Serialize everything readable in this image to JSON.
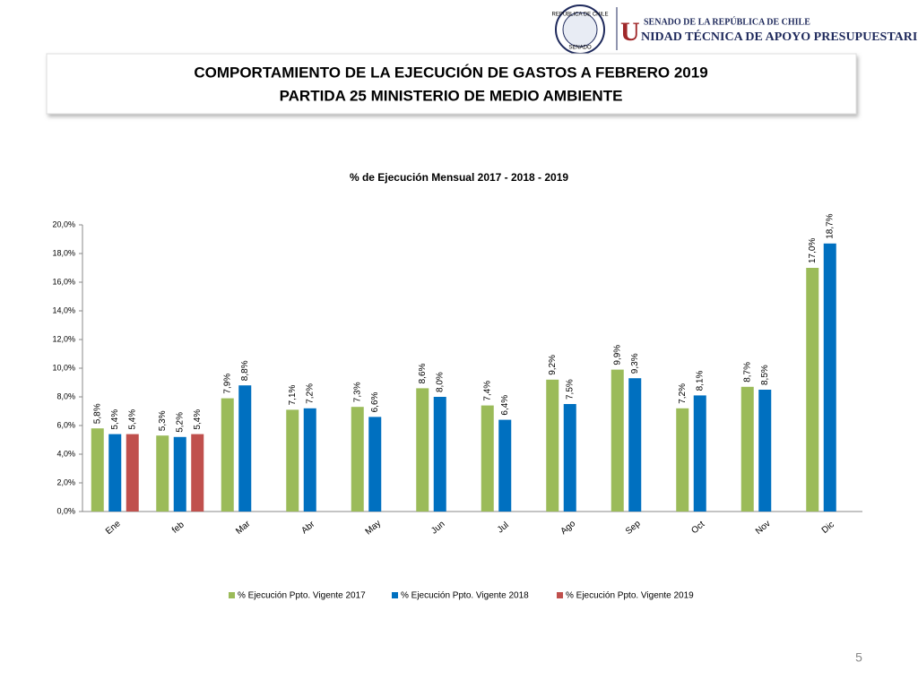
{
  "header": {
    "logo_top": "REPÚBLICA DE CHILE",
    "logo_bottom": "SENADO",
    "org_line1": "SENADO DE LA REPÚBLICA DE CHILE",
    "org_line2": "NIDAD TÉCNICA DE APOYO PRESUPUESTARIO",
    "org_initial": "U"
  },
  "slide": {
    "title_lines": [
      "COMPORTAMIENTO DE LA EJECUCIÓN DE GASTOS A FEBRERO 2019",
      "PARTIDA 25 MINISTERIO DE MEDIO AMBIENTE"
    ],
    "page_number": 5
  },
  "chart_data": {
    "type": "bar",
    "title": "% de Ejecución Mensual 2017 - 2018 - 2019",
    "categories": [
      "Ene",
      "feb",
      "Mar",
      "Abr",
      "May",
      "Jun",
      "Jul",
      "Ago",
      "Sep",
      "Oct",
      "Nov",
      "Dic"
    ],
    "series": [
      {
        "name": "% Ejecución Ppto. Vigente 2017",
        "color": "#9bbb59",
        "values": [
          5.8,
          5.3,
          7.9,
          7.1,
          7.3,
          8.6,
          7.4,
          9.2,
          9.9,
          7.2,
          8.7,
          17.0
        ],
        "value_labels": [
          "5,8%",
          "5,3%",
          "7,9%",
          "7,1%",
          "7,3%",
          "8,6%",
          "7,4%",
          "9,2%",
          "9,9%",
          "7,2%",
          "8,7%",
          "17,0%"
        ]
      },
      {
        "name": "% Ejecución Ppto. Vigente 2018",
        "color": "#0070c0",
        "values": [
          5.4,
          5.2,
          8.8,
          7.2,
          6.6,
          8.0,
          6.4,
          7.5,
          9.3,
          8.1,
          8.5,
          18.7
        ],
        "value_labels": [
          "5,4%",
          "5,2%",
          "8,8%",
          "7,2%",
          "6,6%",
          "8,0%",
          "6,4%",
          "7,5%",
          "9,3%",
          "8,1%",
          "8,5%",
          "18,7%"
        ]
      },
      {
        "name": "% Ejecución Ppto. Vigente 2019",
        "color": "#c0504d",
        "values": [
          5.4,
          5.4,
          null,
          null,
          null,
          null,
          null,
          null,
          null,
          null,
          null,
          null
        ],
        "value_labels": [
          "5,4%",
          "5,4%",
          null,
          null,
          null,
          null,
          null,
          null,
          null,
          null,
          null,
          null
        ]
      }
    ],
    "ylim": [
      0,
      20
    ],
    "yticks": [
      {
        "value": 0,
        "label": "0,0%"
      },
      {
        "value": 2,
        "label": "2,0%"
      },
      {
        "value": 4,
        "label": "4,0%"
      },
      {
        "value": 6,
        "label": "6,0%"
      },
      {
        "value": 8,
        "label": "8,0%"
      },
      {
        "value": 10,
        "label": "10,0%"
      },
      {
        "value": 12,
        "label": "12,0%"
      },
      {
        "value": 14,
        "label": "14,0%"
      },
      {
        "value": 16,
        "label": "16,0%"
      },
      {
        "value": 18,
        "label": "18,0%"
      },
      {
        "value": 20,
        "label": "20,0%"
      }
    ],
    "grid": false,
    "legend": "bottom"
  }
}
